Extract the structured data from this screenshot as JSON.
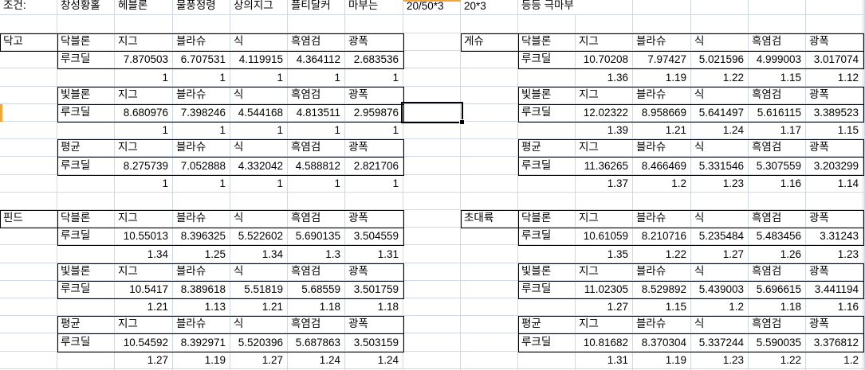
{
  "colors": {
    "background": "#ffffff",
    "text": "#000000",
    "gridline": "#d0d7e5",
    "table_border": "#000000",
    "accent_orange": "#f3a73a"
  },
  "header_row": [
    "조건:",
    "창성황홀",
    "헤블론",
    "물풍정령",
    "상의지그",
    "플티달커",
    "마부는",
    "20/50*3",
    "20*3",
    "등등 극마부"
  ],
  "col_headers": [
    "지그",
    "블라슈",
    "식",
    "흑염검",
    "광폭"
  ],
  "value_row_label": "루크딜",
  "groups": [
    {
      "name": "닥고",
      "blocks": [
        {
          "label": "닥블론",
          "values": [
            "7.870503",
            "6.707531",
            "4.119915",
            "4.364112",
            "2.683536"
          ],
          "ratios": [
            "1",
            "1",
            "1",
            "1",
            "1"
          ]
        },
        {
          "label": "빛블론",
          "values": [
            "8.680976",
            "7.398246",
            "4.544168",
            "4.813511",
            "2.959876"
          ],
          "ratios": [
            "1",
            "1",
            "1",
            "1",
            "1"
          ]
        },
        {
          "label": "평균",
          "values": [
            "8.275739",
            "7.052888",
            "4.332042",
            "4.588812",
            "2.821706"
          ],
          "ratios": [
            "1",
            "1",
            "1",
            "1",
            "1"
          ]
        }
      ]
    },
    {
      "name": "게슈",
      "blocks": [
        {
          "label": "닥블론",
          "values": [
            "10.70208",
            "7.97427",
            "5.021596",
            "4.999003",
            "3.017074"
          ],
          "ratios": [
            "1.36",
            "1.19",
            "1.22",
            "1.15",
            "1.12"
          ]
        },
        {
          "label": "빛블론",
          "values": [
            "12.02322",
            "8.958669",
            "5.641497",
            "5.616115",
            "3.389523"
          ],
          "ratios": [
            "1.39",
            "1.21",
            "1.24",
            "1.17",
            "1.15"
          ]
        },
        {
          "label": "평균",
          "values": [
            "11.36265",
            "8.466469",
            "5.331546",
            "5.307559",
            "3.203299"
          ],
          "ratios": [
            "1.37",
            "1.2",
            "1.23",
            "1.16",
            "1.14"
          ]
        }
      ]
    },
    {
      "name": "핀드",
      "blocks": [
        {
          "label": "닥블론",
          "values": [
            "10.55013",
            "8.396325",
            "5.522602",
            "5.690135",
            "3.504559"
          ],
          "ratios": [
            "1.34",
            "1.25",
            "1.34",
            "1.3",
            "1.31"
          ]
        },
        {
          "label": "빛블론",
          "values": [
            "10.5417",
            "8.389618",
            "5.51819",
            "5.68559",
            "3.501759"
          ],
          "ratios": [
            "1.21",
            "1.13",
            "1.21",
            "1.18",
            "1.18"
          ]
        },
        {
          "label": "평균",
          "values": [
            "10.54592",
            "8.392971",
            "5.520396",
            "5.687863",
            "3.503159"
          ],
          "ratios": [
            "1.27",
            "1.19",
            "1.27",
            "1.24",
            "1.24"
          ]
        }
      ]
    },
    {
      "name": "초대륙",
      "blocks": [
        {
          "label": "닥블론",
          "values": [
            "10.61059",
            "8.210716",
            "5.235484",
            "5.483456",
            "3.31243"
          ],
          "ratios": [
            "1.35",
            "1.22",
            "1.27",
            "1.26",
            "1.23"
          ]
        },
        {
          "label": "빛블론",
          "values": [
            "11.02305",
            "8.529892",
            "5.439003",
            "5.696615",
            "3.441194"
          ],
          "ratios": [
            "1.27",
            "1.15",
            "1.2",
            "1.18",
            "1.16"
          ]
        },
        {
          "label": "평균",
          "values": [
            "10.81682",
            "8.370304",
            "5.337244",
            "5.590035",
            "3.376812"
          ],
          "ratios": [
            "1.31",
            "1.19",
            "1.23",
            "1.22",
            "1.2"
          ]
        }
      ]
    }
  ]
}
